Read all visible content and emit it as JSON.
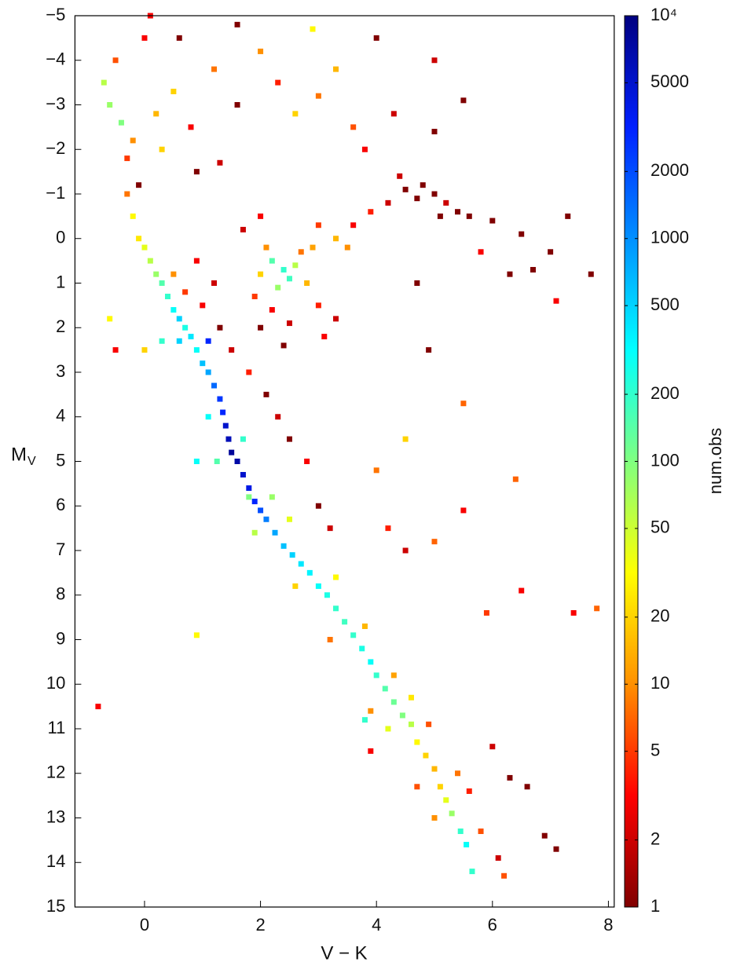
{
  "chart_data": {
    "type": "heatmap-scatter",
    "xlabel": "V − K",
    "ylabel": "M",
    "ylabel_subscript": "V",
    "colorbar_label": "num.obs",
    "xlim": [
      -1.2,
      8.1
    ],
    "xticks": [
      0,
      2,
      4,
      6,
      8
    ],
    "ylim": [
      -5,
      15
    ],
    "y_inverted": true,
    "yticks": [
      {
        "value": -5,
        "label": "−5"
      },
      {
        "value": -4,
        "label": "−4"
      },
      {
        "value": -3,
        "label": "−3"
      },
      {
        "value": -2,
        "label": "−2"
      },
      {
        "value": -1,
        "label": "−1"
      },
      0,
      1,
      2,
      3,
      4,
      5,
      6,
      7,
      8,
      9,
      10,
      11,
      12,
      13,
      14,
      15
    ],
    "clim": [
      1,
      10000
    ],
    "c_log_scale": true,
    "cticks": [
      1,
      2,
      5,
      10,
      20,
      50,
      100,
      200,
      500,
      1000,
      2000,
      5000,
      {
        "value": 10000,
        "label": "10⁴"
      }
    ],
    "colormap": [
      "#800000",
      "#ff0000",
      "#ff9000",
      "#ffff00",
      "#80ff80",
      "#00ffff",
      "#0090ff",
      "#0020ff",
      "#000080"
    ],
    "points": [
      [
        -0.3,
        -1,
        8
      ],
      [
        -0.2,
        -0.5,
        30
      ],
      [
        -0.1,
        0,
        25
      ],
      [
        0,
        0.2,
        40
      ],
      [
        0.1,
        0.5,
        60
      ],
      [
        0.2,
        0.8,
        80
      ],
      [
        0.3,
        1.0,
        150
      ],
      [
        0.4,
        1.3,
        200
      ],
      [
        0.5,
        1.6,
        300
      ],
      [
        0.6,
        1.8,
        500
      ],
      [
        0.7,
        2.0,
        250
      ],
      [
        0.8,
        2.2,
        400
      ],
      [
        0.9,
        2.5,
        300
      ],
      [
        1.0,
        2.8,
        600
      ],
      [
        1.1,
        3.0,
        800
      ],
      [
        1.2,
        3.3,
        1500
      ],
      [
        1.3,
        3.6,
        2500
      ],
      [
        1.35,
        3.9,
        3000
      ],
      [
        1.4,
        4.2,
        5000
      ],
      [
        1.45,
        4.5,
        6000
      ],
      [
        1.5,
        4.8,
        8000
      ],
      [
        1.6,
        5.0,
        7000
      ],
      [
        1.7,
        5.3,
        5000
      ],
      [
        1.8,
        5.6,
        4000
      ],
      [
        1.9,
        5.9,
        3000
      ],
      [
        2.0,
        6.1,
        2000
      ],
      [
        2.1,
        6.3,
        1200
      ],
      [
        2.25,
        6.6,
        800
      ],
      [
        2.4,
        6.9,
        600
      ],
      [
        2.55,
        7.1,
        500
      ],
      [
        2.7,
        7.3,
        400
      ],
      [
        2.85,
        7.5,
        350
      ],
      [
        3.0,
        7.8,
        300
      ],
      [
        3.15,
        8.0,
        250
      ],
      [
        3.3,
        8.3,
        200
      ],
      [
        3.45,
        8.6,
        180
      ],
      [
        3.6,
        8.9,
        200
      ],
      [
        3.75,
        9.2,
        250
      ],
      [
        3.9,
        9.5,
        300
      ],
      [
        4.0,
        9.8,
        200
      ],
      [
        4.15,
        10.1,
        150
      ],
      [
        4.3,
        10.4,
        120
      ],
      [
        4.45,
        10.7,
        100
      ],
      [
        4.6,
        10.9,
        60
      ],
      [
        4.7,
        11.3,
        30
      ],
      [
        4.85,
        11.6,
        20
      ],
      [
        5.0,
        11.9,
        15
      ],
      [
        5.1,
        12.3,
        20
      ],
      [
        5.2,
        12.6,
        40
      ],
      [
        5.3,
        12.9,
        80
      ],
      [
        5.45,
        13.3,
        200
      ],
      [
        5.55,
        13.6,
        300
      ],
      [
        5.65,
        14.2,
        200
      ],
      [
        1.1,
        4.0,
        300
      ],
      [
        1.7,
        4.5,
        200
      ],
      [
        1.25,
        5.0,
        150
      ],
      [
        2.2,
        5.8,
        80
      ],
      [
        1.9,
        6.6,
        60
      ],
      [
        2.5,
        6.3,
        40
      ],
      [
        3.3,
        7.6,
        30
      ],
      [
        2.6,
        7.8,
        20
      ],
      [
        3.8,
        8.7,
        15
      ],
      [
        3.2,
        9.0,
        8
      ],
      [
        4.3,
        9.8,
        12
      ],
      [
        4.6,
        10.3,
        25
      ],
      [
        4.2,
        11.0,
        40
      ],
      [
        3.9,
        10.6,
        10
      ],
      [
        4.9,
        10.9,
        6
      ],
      [
        5.4,
        12.0,
        8
      ],
      [
        4.7,
        12.3,
        6
      ],
      [
        5.6,
        12.4,
        4
      ],
      [
        5.0,
        13.0,
        10
      ],
      [
        5.8,
        13.3,
        6
      ],
      [
        6.0,
        11.4,
        2
      ],
      [
        6.3,
        12.1,
        1
      ],
      [
        6.6,
        12.3,
        1
      ],
      [
        6.9,
        13.4,
        1
      ],
      [
        7.1,
        13.7,
        1
      ],
      [
        6.1,
        13.9,
        2
      ],
      [
        6.2,
        14.3,
        6
      ],
      [
        1.0,
        1.5,
        3
      ],
      [
        1.3,
        2.0,
        1
      ],
      [
        1.5,
        2.5,
        2
      ],
      [
        1.8,
        3.0,
        4
      ],
      [
        2.1,
        3.5,
        1
      ],
      [
        2.3,
        4.0,
        2
      ],
      [
        2.5,
        4.5,
        1
      ],
      [
        2.8,
        5.0,
        3
      ],
      [
        3.0,
        6.0,
        1
      ],
      [
        3.2,
        6.5,
        2
      ],
      [
        0.7,
        1.2,
        5
      ],
      [
        0.5,
        0.8,
        10
      ],
      [
        0.9,
        0.5,
        3
      ],
      [
        1.2,
        1.0,
        2
      ],
      [
        2.2,
        0.5,
        150
      ],
      [
        2.4,
        0.7,
        200
      ],
      [
        2.5,
        0.9,
        180
      ],
      [
        2.3,
        1.1,
        80
      ],
      [
        2.6,
        0.6,
        60
      ],
      [
        2.0,
        0.8,
        20
      ],
      [
        2.8,
        1.0,
        15
      ],
      [
        2.1,
        0.2,
        10
      ],
      [
        2.7,
        0.3,
        8
      ],
      [
        1.9,
        1.3,
        5
      ],
      [
        2.2,
        1.6,
        3
      ],
      [
        2.5,
        1.9,
        2
      ],
      [
        3.0,
        1.5,
        4
      ],
      [
        3.3,
        1.8,
        2
      ],
      [
        3.1,
        2.2,
        3
      ],
      [
        2.4,
        2.4,
        1
      ],
      [
        2.0,
        2.0,
        1
      ],
      [
        2.9,
        0.2,
        12
      ],
      [
        3.3,
        0.0,
        15
      ],
      [
        3.5,
        0.2,
        10
      ],
      [
        3.0,
        -0.3,
        5
      ],
      [
        2.0,
        -0.5,
        3
      ],
      [
        1.7,
        -0.2,
        2
      ],
      [
        3.6,
        -0.3,
        3
      ],
      [
        3.9,
        -0.6,
        4
      ],
      [
        4.2,
        -0.8,
        2
      ],
      [
        4.5,
        -1.1,
        1
      ],
      [
        4.8,
        -1.2,
        1
      ],
      [
        5.0,
        -1.0,
        1
      ],
      [
        5.2,
        -0.8,
        2
      ],
      [
        5.4,
        -0.6,
        1
      ],
      [
        5.1,
        -0.5,
        1
      ],
      [
        4.7,
        -0.9,
        1
      ],
      [
        5.6,
        -0.5,
        1
      ],
      [
        6.0,
        -0.4,
        1
      ],
      [
        6.5,
        -0.1,
        1
      ],
      [
        7.0,
        0.3,
        1
      ],
      [
        7.3,
        -0.5,
        1
      ],
      [
        7.7,
        0.8,
        1
      ],
      [
        6.7,
        0.7,
        1
      ],
      [
        6.3,
        0.8,
        1
      ],
      [
        5.8,
        0.3,
        3
      ],
      [
        4.4,
        -1.4,
        2
      ],
      [
        0.0,
        -4.5,
        3
      ],
      [
        -0.5,
        -4.0,
        6
      ],
      [
        -0.7,
        -3.5,
        60
      ],
      [
        -0.6,
        -3.0,
        80
      ],
      [
        -0.4,
        -2.6,
        100
      ],
      [
        -0.2,
        -2.2,
        10
      ],
      [
        -0.3,
        -1.8,
        5
      ],
      [
        0.2,
        -2.8,
        15
      ],
      [
        0.5,
        -3.3,
        20
      ],
      [
        0.8,
        -2.5,
        3
      ],
      [
        1.2,
        -3.8,
        8
      ],
      [
        1.6,
        -3.0,
        1
      ],
      [
        2.0,
        -4.2,
        10
      ],
      [
        2.3,
        -3.5,
        4
      ],
      [
        2.6,
        -2.8,
        20
      ],
      [
        3.0,
        -3.2,
        8
      ],
      [
        3.3,
        -3.8,
        15
      ],
      [
        3.6,
        -2.5,
        6
      ],
      [
        1.3,
        -1.7,
        2
      ],
      [
        0.9,
        -1.5,
        1
      ],
      [
        0.3,
        -2.0,
        20
      ],
      [
        -0.1,
        -1.2,
        1
      ],
      [
        3.8,
        -2.0,
        3
      ],
      [
        4.3,
        -2.8,
        2
      ],
      [
        5.5,
        -3.1,
        1
      ],
      [
        5.0,
        -2.4,
        1
      ],
      [
        4.0,
        -4.5,
        1
      ],
      [
        5.0,
        -4.0,
        2
      ],
      [
        0.1,
        -5.0,
        3
      ],
      [
        1.6,
        -4.8,
        1
      ],
      [
        2.9,
        -4.7,
        30
      ],
      [
        0.6,
        -4.5,
        1
      ],
      [
        -0.8,
        10.5,
        3
      ],
      [
        0.9,
        8.9,
        30
      ],
      [
        -0.6,
        1.8,
        30
      ],
      [
        -0.5,
        2.5,
        3
      ],
      [
        7.4,
        8.4,
        3
      ],
      [
        7.8,
        8.3,
        7
      ],
      [
        5.9,
        8.4,
        5
      ],
      [
        6.5,
        7.9,
        3
      ],
      [
        6.4,
        5.4,
        7
      ],
      [
        5.5,
        3.7,
        7
      ],
      [
        5.0,
        6.8,
        7
      ],
      [
        4.9,
        2.5,
        1
      ],
      [
        4.0,
        5.2,
        8
      ],
      [
        4.7,
        1.0,
        1
      ],
      [
        4.5,
        4.5,
        20
      ],
      [
        7.1,
        1.4,
        3
      ],
      [
        3.8,
        10.8,
        200
      ],
      [
        3.9,
        11.5,
        3
      ],
      [
        4.5,
        7.0,
        2
      ],
      [
        5.5,
        6.1,
        3
      ],
      [
        4.2,
        6.5,
        4
      ],
      [
        0.0,
        2.5,
        20
      ],
      [
        0.3,
        2.3,
        200
      ],
      [
        0.6,
        2.3,
        500
      ],
      [
        1.1,
        2.3,
        3000
      ],
      [
        0.9,
        5.0,
        300
      ],
      [
        1.8,
        5.8,
        100
      ]
    ]
  }
}
